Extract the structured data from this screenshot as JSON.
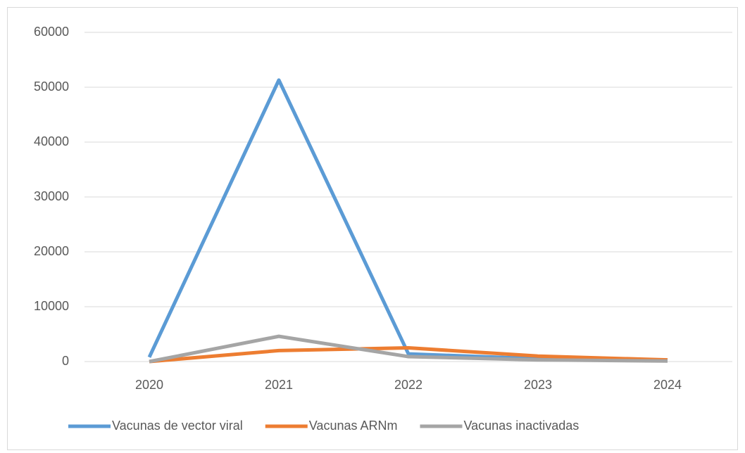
{
  "chart_data": {
    "type": "line",
    "categories": [
      "2020",
      "2021",
      "2022",
      "2023",
      "2024"
    ],
    "series": [
      {
        "name": "Vacunas de vector viral",
        "color": "#5b9bd5",
        "values": [
          800,
          51300,
          1400,
          500,
          200
        ]
      },
      {
        "name": "Vacunas ARNm",
        "color": "#ed7d31",
        "values": [
          0,
          2000,
          2500,
          1000,
          300
        ]
      },
      {
        "name": "Vacunas inactivadas",
        "color": "#a5a5a5",
        "values": [
          0,
          4600,
          900,
          300,
          100
        ]
      }
    ],
    "ylim": [
      0,
      60000
    ],
    "yticks": [
      0,
      10000,
      20000,
      30000,
      40000,
      50000,
      60000
    ],
    "grid": true,
    "legend": "bottom"
  }
}
